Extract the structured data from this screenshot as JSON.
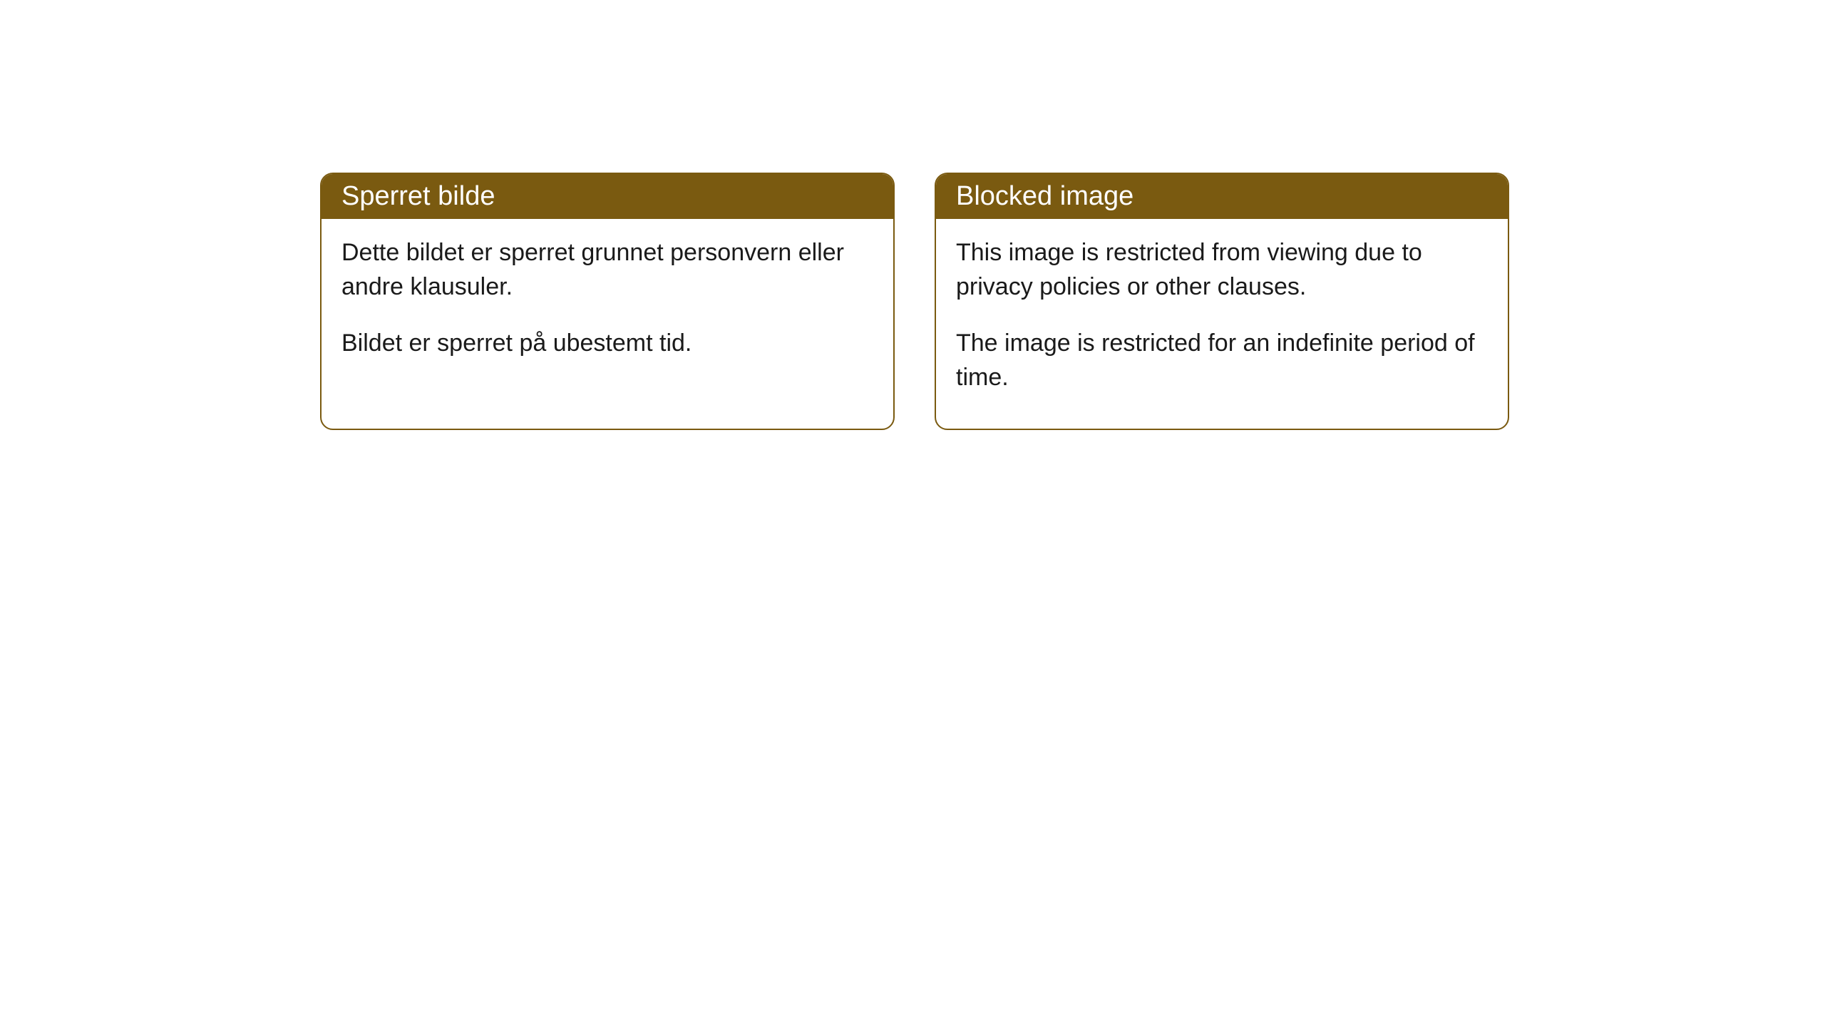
{
  "panels": [
    {
      "title": "Sperret bilde",
      "paragraph1": "Dette bildet er sperret grunnet personvern eller andre klausuler.",
      "paragraph2": "Bildet er sperret på ubestemt tid."
    },
    {
      "title": "Blocked image",
      "paragraph1": "This image is restricted from viewing due to privacy policies or other clauses.",
      "paragraph2": "The image is restricted for an indefinite period of time."
    }
  ],
  "styling": {
    "header_background": "#7a5a10",
    "header_text_color": "#ffffff",
    "border_color": "#7a5a10",
    "body_background": "#ffffff",
    "body_text_color": "#1a1a1a",
    "border_radius": 18,
    "header_font_size": 38,
    "body_font_size": 34
  }
}
